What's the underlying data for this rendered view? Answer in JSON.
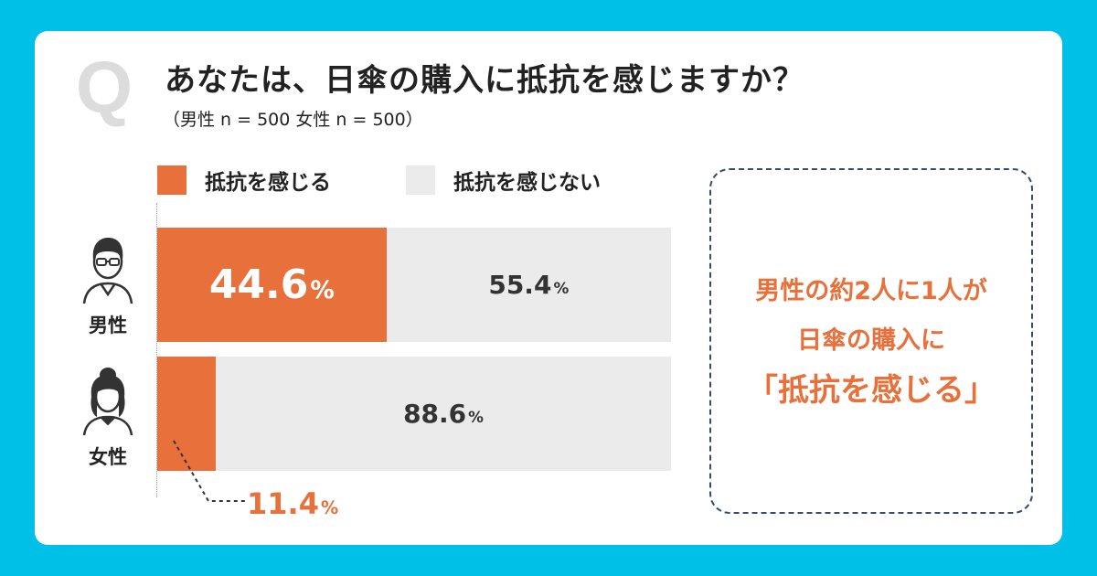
{
  "question": {
    "mark": "Q",
    "title": "あなたは、日傘の購入に抵抗を感じますか？",
    "sample": "（男性 n = 500 女性 n = 500）"
  },
  "colors": {
    "background": "#00c0e8",
    "accent": "#e8703a",
    "muted": "#ebebeb",
    "border": "#3a4a6e"
  },
  "legend": [
    {
      "label": "抵抗を感じる",
      "color": "#e8703a"
    },
    {
      "label": "抵抗を感じない",
      "color": "#ebebeb"
    }
  ],
  "groups": [
    {
      "label": "男性",
      "icon": "male-person-icon"
    },
    {
      "label": "女性",
      "icon": "female-person-icon"
    }
  ],
  "chart_data": {
    "type": "bar",
    "orientation": "horizontal",
    "stacked": true,
    "categories": [
      "男性",
      "女性"
    ],
    "series": [
      {
        "name": "抵抗を感じる",
        "values": [
          44.6,
          11.4
        ],
        "labels": [
          "44.6",
          "11.4"
        ],
        "color": "#e8703a"
      },
      {
        "name": "抵抗を感じない",
        "values": [
          55.4,
          88.6
        ],
        "labels": [
          "55.4",
          "88.6"
        ],
        "color": "#ebebeb"
      }
    ],
    "unit": "%",
    "xlim": [
      0,
      100
    ],
    "legend_position": "top"
  },
  "note": {
    "lines": [
      "男性の約2人に1人が",
      "日傘の購入に",
      "「抵抗を感じる」"
    ]
  }
}
